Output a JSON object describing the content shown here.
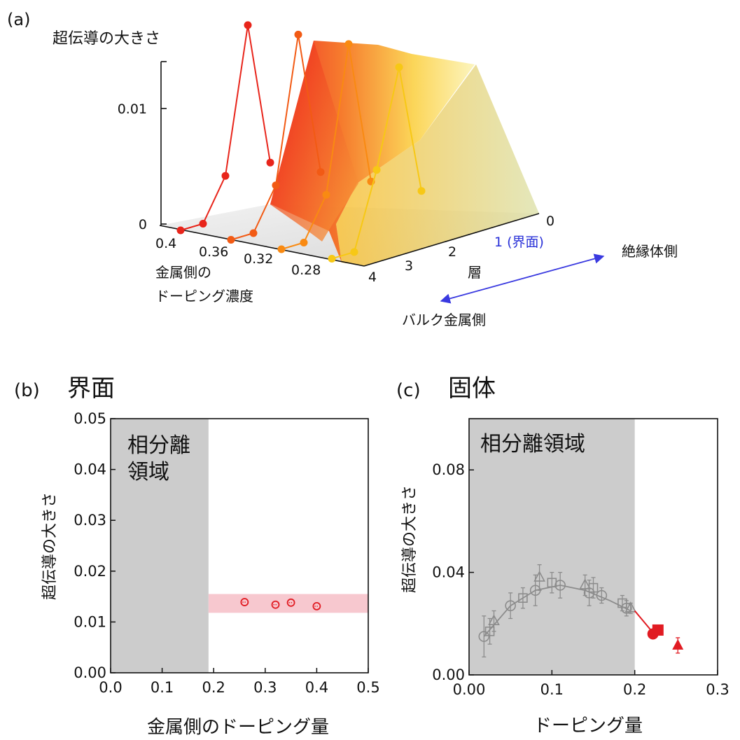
{
  "figure": {
    "panel_a_label": "(a)",
    "panel_b_label": "(b)",
    "panel_c_label": "(c)",
    "panel_b_title": "界面",
    "panel_c_title": "固体"
  },
  "chart_data": [
    {
      "panel": "a",
      "type": "line",
      "title": "",
      "zlabel": "超伝導の大きさ",
      "z_ticks": [
        "0.01",
        "0"
      ],
      "xlabel_line1": "金属側の",
      "xlabel_line2": "ドーピング濃度",
      "x_ticks": [
        "0.4",
        "0.36",
        "0.32",
        "0.28"
      ],
      "ylabel": "層",
      "y_ticks": [
        "0",
        "1 (界面)",
        "2",
        "3",
        "4"
      ],
      "arrow_label_insulator": "絶縁体側",
      "arrow_label_bulk": "バルク金属側",
      "series": [
        {
          "name": "0.4",
          "color": "#e8251b",
          "layers": [
            0,
            1,
            2,
            3,
            4
          ],
          "values": [
            0.003,
            0.0135,
            0.003,
            0.0,
            0.0
          ]
        },
        {
          "name": "0.36",
          "color": "#f25a14",
          "layers": [
            0,
            1,
            2,
            3,
            4
          ],
          "values": [
            0.003,
            0.0135,
            0.003,
            0.0,
            0.0
          ]
        },
        {
          "name": "0.32",
          "color": "#f98a12",
          "layers": [
            0,
            1,
            2,
            3,
            4
          ],
          "values": [
            0.003,
            0.0135,
            0.003,
            0.0,
            0.0
          ]
        },
        {
          "name": "0.28",
          "color": "#f7c815",
          "layers": [
            0,
            1,
            2,
            3,
            4
          ],
          "values": [
            0.003,
            0.0125,
            0.0055,
            0.0,
            0.0
          ]
        }
      ]
    },
    {
      "panel": "b",
      "type": "scatter",
      "title": "",
      "xlabel": "金属側のドーピング量",
      "ylabel": "超伝導の大きさ",
      "xlim": [
        0.0,
        0.5
      ],
      "ylim": [
        0.0,
        0.05
      ],
      "x_ticks": [
        "0.0",
        "0.1",
        "0.2",
        "0.3",
        "0.4",
        "0.5"
      ],
      "y_ticks": [
        "0.00",
        "0.01",
        "0.02",
        "0.03",
        "0.04",
        "0.05"
      ],
      "shaded_region_label_line1": "相分離",
      "shaded_region_label_line2": "領域",
      "shaded_region_x": [
        0.0,
        0.19
      ],
      "band_y": [
        0.0118,
        0.0155
      ],
      "band_color": "#f7c8cf",
      "points": [
        {
          "x": 0.26,
          "y": 0.0139
        },
        {
          "x": 0.32,
          "y": 0.0134
        },
        {
          "x": 0.35,
          "y": 0.0138
        },
        {
          "x": 0.4,
          "y": 0.0131
        }
      ],
      "point_color": "#e11b22"
    },
    {
      "panel": "c",
      "type": "scatter",
      "title": "",
      "xlabel": "ドーピング量",
      "ylabel": "超伝導の大きさ",
      "xlim": [
        0.0,
        0.3
      ],
      "ylim": [
        0.0,
        0.1
      ],
      "x_ticks": [
        "0.00",
        "0.1",
        "0.2",
        "0.3"
      ],
      "y_ticks": [
        "0.00",
        "0.04",
        "0.08"
      ],
      "shaded_region_label": "相分離領域",
      "shaded_region_x": [
        0.0,
        0.2
      ],
      "gray_color": "#8c8c8c",
      "red_color": "#e11b22",
      "gray_curve": [
        {
          "x": 0.018,
          "y": 0.015
        },
        {
          "x": 0.05,
          "y": 0.027
        },
        {
          "x": 0.08,
          "y": 0.033
        },
        {
          "x": 0.11,
          "y": 0.035
        },
        {
          "x": 0.14,
          "y": 0.033
        },
        {
          "x": 0.17,
          "y": 0.029
        },
        {
          "x": 0.195,
          "y": 0.025
        }
      ],
      "gray_circles": [
        {
          "x": 0.018,
          "y": 0.015,
          "err": 0.008
        },
        {
          "x": 0.05,
          "y": 0.027,
          "err": 0.005
        },
        {
          "x": 0.08,
          "y": 0.033,
          "err": 0.006
        },
        {
          "x": 0.11,
          "y": 0.035,
          "err": 0.005
        },
        {
          "x": 0.145,
          "y": 0.032,
          "err": 0.005
        },
        {
          "x": 0.16,
          "y": 0.031,
          "err": 0.003
        },
        {
          "x": 0.19,
          "y": 0.026,
          "err": 0.003
        }
      ],
      "gray_squares": [
        {
          "x": 0.025,
          "y": 0.017,
          "err": 0.005
        },
        {
          "x": 0.065,
          "y": 0.03,
          "err": 0.004
        },
        {
          "x": 0.1,
          "y": 0.036,
          "err": 0.004
        },
        {
          "x": 0.15,
          "y": 0.034,
          "err": 0.004
        },
        {
          "x": 0.185,
          "y": 0.028,
          "err": 0.003
        }
      ],
      "gray_triangles": [
        {
          "x": 0.03,
          "y": 0.021,
          "err": 0.004
        },
        {
          "x": 0.085,
          "y": 0.038,
          "err": 0.005
        },
        {
          "x": 0.14,
          "y": 0.035,
          "err": 0.004
        },
        {
          "x": 0.195,
          "y": 0.026,
          "err": 0.002
        }
      ],
      "red_line": [
        {
          "x": 0.2,
          "y": 0.025
        },
        {
          "x": 0.222,
          "y": 0.0165
        }
      ],
      "red_circles": [
        {
          "x": 0.222,
          "y": 0.016
        }
      ],
      "red_squares": [
        {
          "x": 0.228,
          "y": 0.0175
        }
      ],
      "red_triangles": [
        {
          "x": 0.252,
          "y": 0.0115,
          "err": 0.003
        }
      ]
    }
  ]
}
